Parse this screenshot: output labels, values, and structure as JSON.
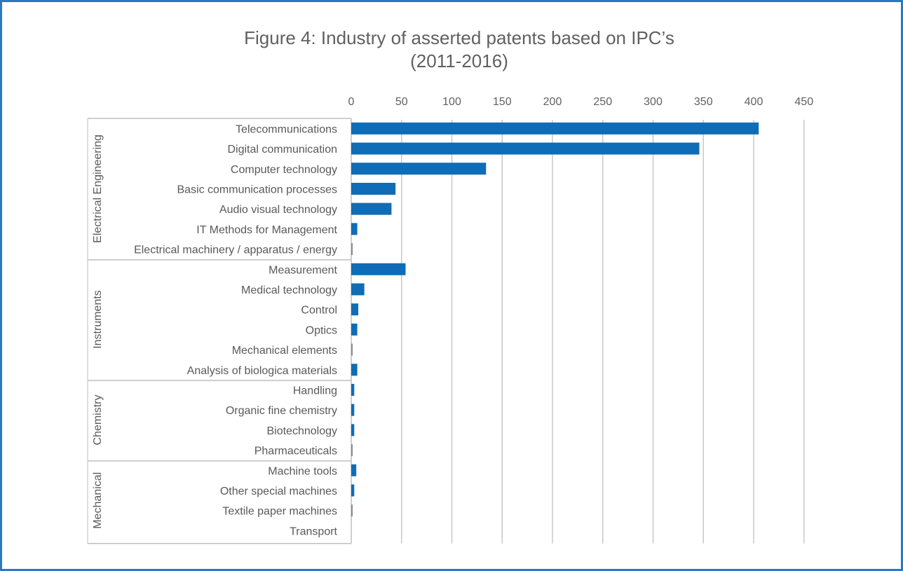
{
  "chart_data": {
    "type": "bar",
    "orientation": "horizontal",
    "title": "Figure 4: Industry of asserted patents based on IPC’s",
    "subtitle": "(2011-2016)",
    "xlabel": "",
    "ylabel": "",
    "xlim": [
      0,
      450
    ],
    "x_ticks": [
      0,
      50,
      100,
      150,
      200,
      250,
      300,
      350,
      400,
      450
    ],
    "x_axis_position": "top",
    "grid": true,
    "bar_color": "#0f6cb6",
    "groups": [
      {
        "name": "Electrical Engineering",
        "categories": [
          {
            "label": "Telecommunications",
            "value": 405
          },
          {
            "label": "Digital communication",
            "value": 346
          },
          {
            "label": "Computer technology",
            "value": 134
          },
          {
            "label": "Basic communication processes",
            "value": 44
          },
          {
            "label": "Audio visual technology",
            "value": 40
          },
          {
            "label": "IT Methods for Management",
            "value": 6
          },
          {
            "label": "Electrical machinery / apparatus / energy",
            "value": 1
          }
        ]
      },
      {
        "name": "Instruments",
        "categories": [
          {
            "label": "Measurement",
            "value": 54
          },
          {
            "label": "Medical technology",
            "value": 13
          },
          {
            "label": "Control",
            "value": 7
          },
          {
            "label": "Optics",
            "value": 6
          },
          {
            "label": "Mechanical elements",
            "value": 1
          },
          {
            "label": "Analysis of biologica materials",
            "value": 6
          }
        ]
      },
      {
        "name": "Chemistry",
        "categories": [
          {
            "label": "Handling",
            "value": 3
          },
          {
            "label": "Organic fine chemistry",
            "value": 3
          },
          {
            "label": "Biotechnology",
            "value": 3
          },
          {
            "label": "Pharmaceuticals",
            "value": 1
          }
        ]
      },
      {
        "name": "Mechanical",
        "categories": [
          {
            "label": "Machine tools",
            "value": 5
          },
          {
            "label": "Other special machines",
            "value": 3
          },
          {
            "label": "Textile paper machines",
            "value": 1
          },
          {
            "label": "Transport",
            "value": 0
          }
        ]
      }
    ]
  }
}
